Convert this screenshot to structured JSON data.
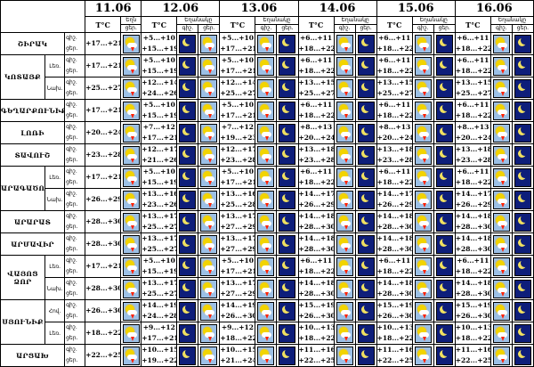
{
  "header": {
    "dates": [
      "11.06",
      "12.06",
      "13.06",
      "14.06",
      "15.06",
      "16.06"
    ],
    "temp_label": "T°C",
    "weather_label": "Եղանակը",
    "weather_label_short": "Եղն",
    "day_label": "ցեր.",
    "night_label": "գիշ."
  },
  "row_labels": [
    "գիշ.",
    "ցեր."
  ],
  "rows": [
    {
      "region": "ՇԻՐԱԿ",
      "sub": "",
      "temps": [
        [
          "+17...+21"
        ],
        [
          "+5...+10",
          "+15...+19"
        ],
        [
          "+5...+10",
          "+17...+21"
        ],
        [
          "+6...+11",
          "+18...+22"
        ],
        [
          "+6...+11",
          "+18...+22"
        ],
        [
          "+6...+11",
          "+18...+22"
        ]
      ],
      "icons": [
        "sun-cloud-storm",
        "moon",
        "sun-cloud-storm",
        "sun-cloud-storm",
        "moon",
        "sun-cloud-storm",
        "moon",
        "sun-cloud-storm",
        "moon",
        "sun-cloud-storm",
        "moon"
      ]
    },
    {
      "region": "ԿՈՏԱՅՔ",
      "sub": "Լեռ.",
      "temps": [
        [
          "+17...+21"
        ],
        [
          "+5...+10",
          "+15...+19"
        ],
        [
          "+5...+10",
          "+17...+21"
        ],
        [
          "+6...+11",
          "+18...+22"
        ],
        [
          "+6...+11",
          "+18...+22"
        ],
        [
          "+6...+11",
          "+18...+22"
        ]
      ],
      "icons": [
        "sun-cloud-storm",
        "moon",
        "sun-cloud-storm",
        "sun-cloud-storm",
        "moon",
        "sun-cloud-storm",
        "moon",
        "sun-cloud-storm",
        "moon",
        "sun-cloud-storm",
        "moon"
      ]
    },
    {
      "region": "",
      "sub": "Նախ.",
      "temps": [
        [
          "+25...+27"
        ],
        [
          "+12...+14",
          "+24...+26"
        ],
        [
          "+12...+14",
          "+25...+27"
        ],
        [
          "+13...+15",
          "+25...+27"
        ],
        [
          "+13...+15",
          "+25...+27"
        ],
        [
          "+13...+15",
          "+25...+27"
        ]
      ],
      "icons": [
        "sun-cloud-storm",
        "moon",
        "sun-cloud-storm",
        "sun-cloud-storm",
        "moon",
        "sun-cloud-storm",
        "moon",
        "sun-cloud-storm",
        "moon",
        "sun-cloud-storm",
        "moon"
      ]
    },
    {
      "region": "ԳԵՂԱՐՔՈՒՆԻՔ",
      "sub": "",
      "temps": [
        [
          "+17...+21"
        ],
        [
          "+5...+10",
          "+15...+19"
        ],
        [
          "+5...+10",
          "+17...+21"
        ],
        [
          "+6...+11",
          "+18...+22"
        ],
        [
          "+6...+11",
          "+18...+22"
        ],
        [
          "+6...+11",
          "+18...+22"
        ]
      ],
      "icons": [
        "sun-cloud-storm",
        "moon",
        "sun-cloud-storm",
        "sun-cloud-storm",
        "moon",
        "sun-cloud-storm",
        "moon",
        "sun-cloud-storm",
        "moon",
        "sun-cloud-storm",
        "moon"
      ]
    },
    {
      "region": "ԼՈՌԻ",
      "sub": "",
      "temps": [
        [
          "+20...+24"
        ],
        [
          "+7...+12",
          "+17...+21"
        ],
        [
          "+7...+12",
          "+19...+23"
        ],
        [
          "+8...+13",
          "+20...+24"
        ],
        [
          "+8...+13",
          "+20...+24"
        ],
        [
          "+8...+13",
          "+20...+24"
        ]
      ],
      "icons": [
        "sun-cloud-storm",
        "moon",
        "sun-cloud-storm",
        "sun-cloud-storm",
        "moon",
        "sun-cloud-storm",
        "moon",
        "sun-cloud-storm",
        "moon",
        "sun-cloud-storm",
        "moon"
      ]
    },
    {
      "region": "ՏԱՎՈՒՇ",
      "sub": "",
      "temps": [
        [
          "+23...+28"
        ],
        [
          "+12...+17",
          "+21...+26"
        ],
        [
          "+12...+17",
          "+23...+28"
        ],
        [
          "+13...+18",
          "+23...+28"
        ],
        [
          "+13...+18",
          "+23...+28"
        ],
        [
          "+13...+18",
          "+23...+28"
        ]
      ],
      "icons": [
        "sun-cloud-storm",
        "moon",
        "sun-cloud-storm",
        "sun-cloud-storm",
        "moon",
        "sun-cloud-storm",
        "moon",
        "sun-cloud-storm",
        "moon",
        "sun-cloud-storm",
        "moon"
      ]
    },
    {
      "region": "ԱՐԱԳԱԾՈՏՆ",
      "sub": "Լեռ.",
      "temps": [
        [
          "+17...+21"
        ],
        [
          "+5...+10",
          "+15...+19"
        ],
        [
          "+5...+10",
          "+17...+21"
        ],
        [
          "+6...+11",
          "+18...+22"
        ],
        [
          "+6...+11",
          "+18...+22"
        ],
        [
          "+6...+11",
          "+18...+22"
        ]
      ],
      "icons": [
        "sun-cloud-storm",
        "moon",
        "sun-cloud-storm",
        "sun-cloud-storm",
        "moon",
        "sun-cloud-storm",
        "moon",
        "sun-cloud-storm",
        "moon",
        "sun-cloud-storm",
        "moon"
      ]
    },
    {
      "region": "",
      "sub": "Նախ.",
      "temps": [
        [
          "+26...+29"
        ],
        [
          "+13...+16",
          "+23...+26"
        ],
        [
          "+13...+16",
          "+25...+28"
        ],
        [
          "+14...+17",
          "+26...+29"
        ],
        [
          "+14...+17",
          "+26...+29"
        ],
        [
          "+14...+17",
          "+26...+29"
        ]
      ],
      "icons": [
        "sun-cloud-storm",
        "moon",
        "sun-cloud-storm",
        "sun-cloud-storm",
        "moon",
        "sun-cloud-storm",
        "moon",
        "sun-cloud-storm",
        "moon",
        "sun-cloud-storm",
        "moon"
      ]
    },
    {
      "region": "ԱՐԱՐԱՏ",
      "sub": "",
      "temps": [
        [
          "+28...+30"
        ],
        [
          "+13...+17",
          "+25...+27"
        ],
        [
          "+13...+17",
          "+27...+29"
        ],
        [
          "+14...+18",
          "+28...+30"
        ],
        [
          "+14...+18",
          "+28...+30"
        ],
        [
          "+14...+18",
          "+28...+30"
        ]
      ],
      "icons": [
        "sun-cloud-storm",
        "moon",
        "sun-cloud-storm",
        "sun-cloud-storm",
        "moon",
        "sun-cloud-storm",
        "moon",
        "sun-cloud-storm",
        "moon",
        "sun-cloud-storm",
        "moon"
      ]
    },
    {
      "region": "ԱՐՄԱՎԻՐ",
      "sub": "",
      "temps": [
        [
          "+28...+30"
        ],
        [
          "+13...+17",
          "+25...+27"
        ],
        [
          "+13...+17",
          "+27...+29"
        ],
        [
          "+14...+18",
          "+28...+30"
        ],
        [
          "+14...+18",
          "+28...+30"
        ],
        [
          "+14...+18",
          "+28...+30"
        ]
      ],
      "icons": [
        "sun-cloud-storm",
        "moon",
        "sun-cloud-storm",
        "sun-cloud-storm",
        "moon",
        "sun-cloud-storm",
        "moon",
        "sun-cloud-storm",
        "moon",
        "sun-cloud-storm",
        "moon"
      ]
    },
    {
      "region": "ՎԱՅՈՑ ՁՈՐ",
      "sub": "Լեռ.",
      "temps": [
        [
          "+17...+21"
        ],
        [
          "+5...+10",
          "+15...+19"
        ],
        [
          "+5...+10",
          "+17...+21"
        ],
        [
          "+6...+11",
          "+18...+22"
        ],
        [
          "+6...+11",
          "+18...+22"
        ],
        [
          "+6...+11",
          "+18...+22"
        ]
      ],
      "icons": [
        "sun-cloud-storm",
        "moon",
        "sun-cloud-storm",
        "sun-cloud-storm",
        "moon",
        "sun-cloud-storm",
        "moon",
        "sun-cloud-storm",
        "moon",
        "sun-cloud-storm",
        "moon"
      ]
    },
    {
      "region": "",
      "sub": "Նախ.",
      "temps": [
        [
          "+28...+30"
        ],
        [
          "+13...+17",
          "+25...+27"
        ],
        [
          "+13...+17",
          "+27...+29"
        ],
        [
          "+14...+18",
          "+28...+30"
        ],
        [
          "+14...+18",
          "+28...+30"
        ],
        [
          "+14...+18",
          "+28...+30"
        ]
      ],
      "icons": [
        "sun-cloud-storm",
        "moon",
        "sun-cloud-storm",
        "sun-cloud-storm",
        "moon",
        "sun-cloud-storm",
        "moon",
        "sun-cloud-storm",
        "moon",
        "sun-cloud-storm",
        "moon"
      ]
    },
    {
      "region": "ՍՅՈՒՆԻՔ",
      "sub": "Հով.",
      "temps": [
        [
          "+26...+30"
        ],
        [
          "+14...+19",
          "+24...+28"
        ],
        [
          "+14...+19",
          "+26...+30"
        ],
        [
          "+15...+19",
          "+26...+30"
        ],
        [
          "+15...+19",
          "+26...+30"
        ],
        [
          "+15...+19",
          "+26...+30"
        ]
      ],
      "icons": [
        "sun-cloud-storm",
        "moon",
        "sun-cloud-storm",
        "sun-cloud-storm",
        "moon",
        "sun-cloud-storm",
        "moon",
        "sun-cloud-storm",
        "moon",
        "sun-cloud-storm",
        "moon"
      ]
    },
    {
      "region": "",
      "sub": "Լեռ.",
      "temps": [
        [
          "+18...+22"
        ],
        [
          "+9...+12",
          "+17...+21"
        ],
        [
          "+9...+12",
          "+18...+22"
        ],
        [
          "+10...+13",
          "+18...+22"
        ],
        [
          "+10...+13",
          "+18...+22"
        ],
        [
          "+10...+13",
          "+18...+22"
        ]
      ],
      "icons": [
        "sun-cloud-storm",
        "moon",
        "sun-cloud-storm",
        "sun-cloud-storm",
        "moon",
        "sun-cloud-storm",
        "moon",
        "sun-cloud-storm",
        "moon",
        "sun-cloud-storm",
        "moon"
      ]
    },
    {
      "region": "ԱՐՑԱԽ",
      "sub": "",
      "temps": [
        [
          "+22...+25"
        ],
        [
          "+10...+15",
          "+19...+22"
        ],
        [
          "+10...+15",
          "+21...+24"
        ],
        [
          "+11...+16",
          "+22...+25"
        ],
        [
          "+11...+16",
          "+22...+25"
        ],
        [
          "+11...+16",
          "+22...+25"
        ]
      ],
      "icons": [
        "sun-cloud-storm",
        "moon",
        "sun-cloud-storm",
        "sun-cloud-storm",
        "moon",
        "sun-cloud-storm",
        "moon",
        "sun-cloud-storm",
        "moon",
        "sun-cloud-storm",
        "moon"
      ]
    }
  ],
  "colors": {
    "day_sky": "#9cc0e6",
    "night_sky": "#0e1e7a",
    "sun": "#f2d400",
    "lightning": "#ff2000"
  }
}
